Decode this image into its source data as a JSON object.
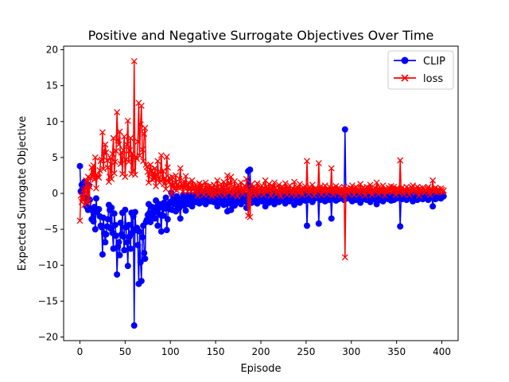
{
  "chart_data": {
    "type": "line",
    "title": "Positive and Negative Surrogate Objectives Over Time",
    "xlabel": "Episode",
    "ylabel": "Expected Surrogate Objective",
    "xlim": [
      -18,
      418
    ],
    "ylim": [
      -20.5,
      20.5
    ],
    "xticks": [
      0,
      50,
      100,
      150,
      200,
      250,
      300,
      350,
      400
    ],
    "yticks": [
      -20,
      -15,
      -10,
      -5,
      0,
      5,
      10,
      15,
      20
    ],
    "legend": "top-right",
    "grid": false,
    "series": [
      {
        "name": "CLIP",
        "color": "#0000ff",
        "marker": "o",
        "y": [
          3.8,
          0.3,
          1.2,
          0.8,
          -0.5,
          1.6,
          -0.7,
          -1.8,
          1.3,
          -2.3,
          1.1,
          -0.9,
          -2.1,
          -3.6,
          -2.4,
          -3.9,
          -1.9,
          -5.0,
          -0.7,
          -2.6,
          -2.3,
          -2.2,
          -3.2,
          -4.5,
          -4.7,
          -8.5,
          -3.4,
          -5.6,
          -6.8,
          -5.7,
          -4.6,
          -3.6,
          -1.6,
          -2.3,
          -4.9,
          -2.0,
          -5.5,
          -7.7,
          -2.8,
          -4.4,
          -5.9,
          -11.3,
          -7.4,
          -6.8,
          -8.6,
          -4.1,
          -5.7,
          -2.7,
          -6.0,
          -7.9,
          -2.3,
          -4.7,
          -6.8,
          -10.1,
          -4.4,
          -6.0,
          -7.7,
          -2.7,
          -5.5,
          -3.2,
          -18.4,
          -2.6,
          -5.1,
          -4.8,
          -7.2,
          -12.6,
          -5.3,
          -9.6,
          -12.2,
          -6.1,
          -4.5,
          -8.3,
          -9.1,
          -4.0,
          -3.7,
          -3.0,
          -1.5,
          -2.7,
          -4.0,
          -3.2,
          -1.9,
          -2.8,
          -2.0,
          -3.5,
          -1.0,
          -2.6,
          -4.5,
          -2.1,
          -1.5,
          -3.0,
          -5.3,
          -1.9,
          -3.1,
          -1.3,
          -2.1,
          -0.6,
          -5.1,
          -3.6,
          -1.5,
          -2.2,
          -1.2,
          0.1,
          -2.3,
          -1.1,
          -0.6,
          -1.5,
          -2.5,
          -0.4,
          -1.3,
          -0.9,
          -2.0,
          -3.5,
          -0.8,
          -1.2,
          -0.2,
          -1.7,
          -0.8,
          -2.4,
          -1.0,
          -0.3,
          -1.5,
          -0.5,
          -0.9,
          -0.3,
          -1.8,
          -1.1,
          -0.6,
          -0.2,
          -1.2,
          -0.7,
          0.3,
          -0.4,
          -1.4,
          -0.8,
          -0.1,
          -1.2,
          -0.4,
          0.2,
          -0.8,
          -1.5,
          -0.3,
          -0.9,
          0.1,
          -0.5,
          -1.1,
          -0.2,
          0.4,
          -0.7,
          -1.2,
          -0.3,
          0.2,
          -0.9,
          -1.8,
          -0.4,
          0.1,
          -0.6,
          -1.3,
          -0.2,
          -0.8,
          -1.6,
          0.3,
          -0.4,
          -1.1,
          -2.5,
          -0.6,
          -0.1,
          -1.4,
          -2.3,
          -0.5,
          0.2,
          -0.9,
          -1.7,
          -0.3,
          -0.8,
          0.4,
          -1.2,
          -0.6,
          -0.2,
          -1.5,
          -0.7,
          0.1,
          -0.4,
          -1.1,
          -0.3,
          -2.0,
          -0.8,
          3.1,
          -0.5,
          3.3,
          0.2,
          -1.3,
          -0.4,
          -0.9,
          -0.2,
          0.3,
          -0.7,
          -1.4,
          -0.5,
          0.1,
          -0.8,
          -0.3,
          -1.1,
          -0.6,
          0.2,
          -0.4,
          -1.8,
          -0.9,
          -0.2,
          -0.7,
          -1.3,
          -0.4,
          0.3,
          -0.6,
          -1.0,
          -0.3,
          -1.5,
          -0.8,
          0.1,
          -0.5,
          -0.2,
          -1.2,
          -0.6,
          0.4,
          -0.3,
          -0.9,
          -0.7,
          -0.1,
          -1.4,
          -0.4,
          0.2,
          -0.8,
          -0.5,
          -1.1,
          -0.3,
          0.1,
          -0.7,
          -0.2,
          -1.6,
          -0.5,
          0.3,
          -0.9,
          -0.4,
          -0.1,
          -1.3,
          -0.6,
          -0.2,
          0.2,
          -0.8,
          -0.4,
          -1.0,
          -0.3,
          -4.5,
          -0.6,
          0.1,
          -0.9,
          -0.2,
          -0.5,
          -1.2,
          -0.4,
          0.3,
          -0.7,
          -0.1,
          -0.6,
          -0.3,
          -4.2,
          -0.5,
          -0.9,
          0.2,
          -0.4,
          -0.8,
          -0.2,
          -1.1,
          -0.5,
          0.1,
          -0.6,
          -0.3,
          -0.9,
          -0.4,
          -3.5,
          -0.7,
          0.2,
          -0.3,
          -0.6,
          -1.0,
          -0.4,
          -0.1,
          -0.8,
          -0.5,
          -0.2,
          0.3,
          -0.6,
          -0.3,
          -0.9,
          8.9,
          -0.4,
          -0.7,
          -0.2,
          0.1,
          -0.5,
          -0.8,
          -0.3,
          -1.1,
          -0.6,
          0.2,
          -0.4,
          -0.9,
          -0.2,
          -0.7,
          -0.5,
          0.1,
          -1.3,
          -0.3,
          -0.6,
          -0.8,
          -0.2,
          0.3,
          -0.5,
          -0.9,
          -0.4,
          -0.1,
          -0.7,
          -1.2,
          -0.3,
          0.2,
          -0.6,
          -0.4,
          -0.8,
          -0.2,
          -1.5,
          -0.5,
          0.1,
          -0.9,
          -0.3,
          -0.6,
          -0.2,
          -1.1,
          -0.4,
          0.3,
          -0.7,
          -0.5,
          -0.1,
          -0.8,
          -0.3,
          -0.6,
          -1.0,
          -0.2,
          -0.5,
          -0.9,
          -0.4,
          0.2,
          -0.7,
          -0.3,
          -0.6,
          -0.1,
          -4.6,
          -0.5,
          -0.8,
          -0.2,
          0.1,
          -0.6,
          -0.4,
          -0.9,
          -0.3,
          -0.7,
          0.2,
          -0.5,
          -0.2,
          -0.8,
          -1.1,
          -0.4,
          -0.6,
          -0.1,
          -0.3,
          -0.9,
          -0.5,
          0.3,
          -0.7,
          -0.2,
          -0.4,
          -0.8,
          -0.6,
          -0.1,
          -0.5,
          -0.3,
          -0.7,
          -0.9,
          -0.2,
          0.2,
          -0.4,
          -0.6,
          -1.8,
          -0.3,
          -0.5,
          -0.8,
          -0.1,
          -0.4,
          -0.6,
          -0.2,
          -0.3,
          -0.7,
          -0.5,
          -0.2,
          -0.4
        ]
      },
      {
        "name": "loss",
        "color": "#ff0000",
        "marker": "x",
        "y": [
          -3.8,
          -0.3,
          -1.2,
          -0.8,
          0.5,
          -1.6,
          0.7,
          1.8,
          -1.3,
          2.3,
          -1.1,
          0.9,
          2.1,
          3.6,
          2.4,
          3.9,
          1.9,
          5.0,
          0.7,
          2.6,
          2.3,
          2.2,
          3.2,
          4.5,
          4.7,
          8.5,
          3.4,
          5.6,
          6.8,
          5.7,
          4.6,
          3.6,
          1.6,
          2.3,
          4.9,
          2.0,
          5.5,
          7.7,
          2.8,
          4.4,
          5.9,
          11.3,
          7.4,
          6.8,
          8.6,
          4.1,
          5.7,
          2.7,
          6.0,
          7.9,
          2.3,
          4.7,
          6.8,
          10.1,
          4.4,
          6.0,
          7.7,
          2.7,
          5.5,
          3.2,
          18.4,
          2.6,
          5.1,
          4.8,
          7.2,
          12.6,
          5.3,
          9.6,
          12.2,
          6.1,
          4.5,
          8.3,
          9.1,
          4.0,
          3.7,
          3.0,
          1.5,
          2.7,
          4.0,
          3.2,
          1.9,
          2.8,
          2.0,
          3.5,
          1.0,
          2.6,
          4.5,
          2.1,
          1.5,
          3.0,
          5.3,
          1.9,
          3.1,
          1.3,
          2.1,
          0.6,
          5.1,
          3.6,
          1.5,
          2.2,
          1.2,
          -0.1,
          2.3,
          1.1,
          0.6,
          1.5,
          2.5,
          0.4,
          1.3,
          0.9,
          2.0,
          3.5,
          0.8,
          1.2,
          0.2,
          1.7,
          0.8,
          2.4,
          1.0,
          0.3,
          1.5,
          0.5,
          0.9,
          0.3,
          1.8,
          1.1,
          0.6,
          0.2,
          1.2,
          0.7,
          -0.3,
          0.4,
          1.4,
          0.8,
          0.1,
          1.2,
          0.4,
          -0.2,
          0.8,
          1.5,
          0.3,
          0.9,
          -0.1,
          0.5,
          1.1,
          0.2,
          -0.4,
          0.7,
          1.2,
          0.3,
          -0.2,
          0.9,
          1.8,
          0.4,
          -0.1,
          0.6,
          1.3,
          0.2,
          0.8,
          1.6,
          -0.3,
          0.4,
          1.1,
          2.5,
          0.6,
          0.1,
          1.4,
          2.3,
          0.5,
          -0.2,
          0.9,
          1.7,
          0.3,
          0.8,
          -0.4,
          1.2,
          0.6,
          0.2,
          1.5,
          0.7,
          -0.1,
          0.4,
          1.1,
          0.3,
          2.0,
          0.8,
          -3.1,
          0.5,
          -3.3,
          -0.2,
          1.3,
          0.4,
          0.9,
          0.2,
          -0.3,
          0.7,
          1.4,
          0.5,
          -0.1,
          0.8,
          0.3,
          1.1,
          0.6,
          -0.2,
          0.4,
          1.8,
          0.9,
          0.2,
          0.7,
          1.3,
          0.4,
          -0.3,
          0.6,
          1.0,
          0.3,
          1.5,
          0.8,
          -0.1,
          0.5,
          0.2,
          1.2,
          0.6,
          -0.4,
          0.3,
          0.9,
          0.7,
          0.1,
          1.4,
          0.4,
          -0.2,
          0.8,
          0.5,
          1.1,
          0.3,
          -0.1,
          0.7,
          0.2,
          1.6,
          0.5,
          -0.3,
          0.9,
          0.4,
          0.1,
          1.3,
          0.6,
          0.2,
          -0.2,
          0.8,
          0.4,
          1.0,
          0.3,
          4.5,
          0.6,
          -0.1,
          0.9,
          0.2,
          0.5,
          1.2,
          0.4,
          -0.3,
          0.7,
          0.1,
          0.6,
          0.3,
          4.2,
          0.5,
          0.9,
          -0.2,
          0.4,
          0.8,
          0.2,
          1.1,
          0.5,
          -0.1,
          0.6,
          0.3,
          0.9,
          0.4,
          3.5,
          0.7,
          -0.2,
          0.3,
          0.6,
          1.0,
          0.4,
          0.1,
          0.8,
          0.5,
          0.2,
          -0.3,
          0.6,
          0.3,
          0.9,
          -8.9,
          0.4,
          0.7,
          0.2,
          -0.1,
          0.5,
          0.8,
          0.3,
          1.1,
          0.6,
          -0.2,
          0.4,
          0.9,
          0.2,
          0.7,
          0.5,
          -0.1,
          1.3,
          0.3,
          0.6,
          0.8,
          0.2,
          -0.3,
          0.5,
          0.9,
          0.4,
          0.1,
          0.7,
          1.2,
          0.3,
          -0.2,
          0.6,
          0.4,
          0.8,
          0.2,
          1.5,
          0.5,
          -0.1,
          0.9,
          0.3,
          0.6,
          0.2,
          1.1,
          0.4,
          -0.3,
          0.7,
          0.5,
          0.1,
          0.8,
          0.3,
          0.6,
          1.0,
          0.2,
          0.5,
          0.9,
          0.4,
          -0.2,
          0.7,
          0.3,
          0.6,
          0.1,
          4.6,
          0.5,
          0.8,
          0.2,
          -0.1,
          0.6,
          0.4,
          0.9,
          0.3,
          0.7,
          -0.2,
          0.5,
          0.2,
          0.8,
          1.1,
          0.4,
          0.6,
          0.1,
          0.3,
          0.9,
          0.5,
          -0.3,
          0.7,
          0.2,
          0.4,
          0.8,
          0.6,
          0.1,
          0.5,
          0.3,
          0.7,
          0.9,
          0.2,
          -0.2,
          0.4,
          0.6,
          1.8,
          0.3,
          0.5,
          0.8,
          0.1,
          0.4,
          0.6,
          0.2,
          0.3,
          0.7,
          0.5,
          0.2,
          0.4
        ]
      }
    ]
  }
}
